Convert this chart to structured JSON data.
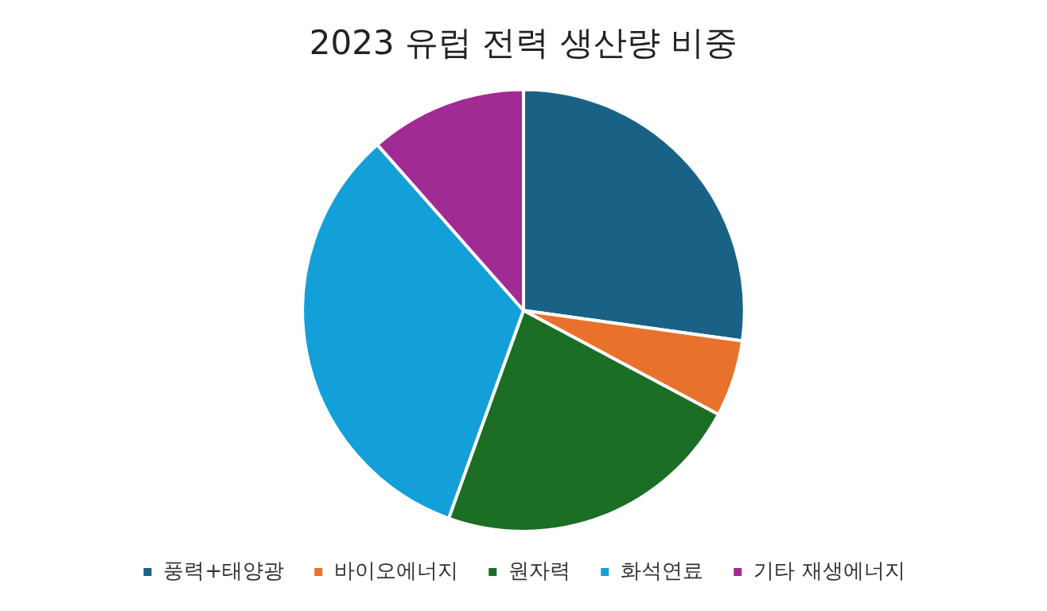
{
  "chart_data": {
    "type": "pie",
    "title": "2023 유럽 전력 생산량 비중",
    "categories": [
      "풍력+태양광",
      "바이오에너지",
      "원자력",
      "화석연료",
      "기타 재생에너지"
    ],
    "values": [
      27.2,
      5.6,
      22.7,
      33.0,
      11.5
    ],
    "colors": [
      "#1a6285",
      "#e8722c",
      "#1c6e25",
      "#13a0d8",
      "#a02b93"
    ],
    "legend": "bottom"
  }
}
